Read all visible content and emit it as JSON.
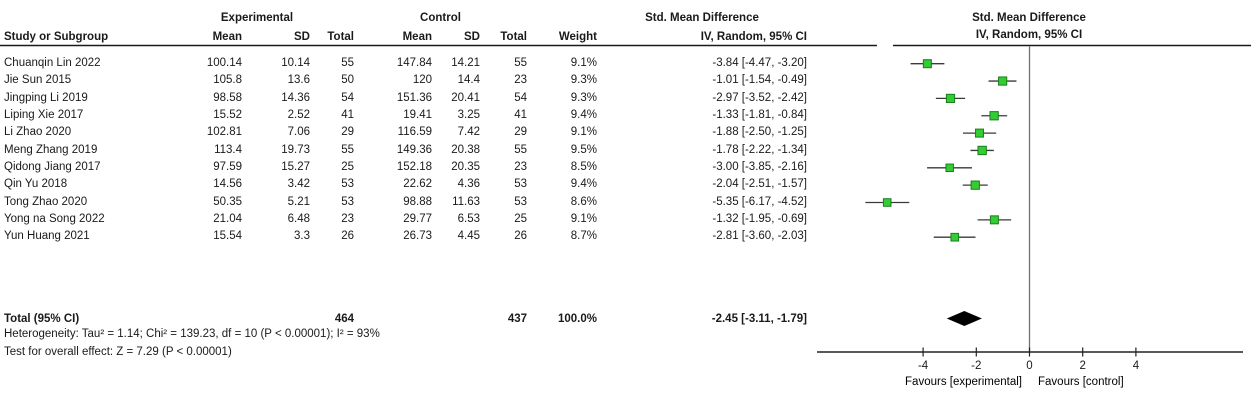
{
  "table": {
    "group_headers": {
      "experimental": "Experimental",
      "control": "Control"
    },
    "smd_header_line1": "Std. Mean Difference",
    "smd_header_line2": "IV, Random, 95% CI",
    "columns": {
      "study": "Study or Subgroup",
      "mean": "Mean",
      "sd": "SD",
      "total": "Total",
      "weight": "Weight"
    },
    "rows": [
      {
        "study": "Chuanqin Lin 2022",
        "exp_mean": "100.14",
        "exp_sd": "10.14",
        "exp_total": "55",
        "ctl_mean": "147.84",
        "ctl_sd": "14.21",
        "ctl_total": "55",
        "weight": "9.1%",
        "ci_text": "-3.84 [-4.47, -3.20]",
        "est": -3.84,
        "lo": -4.47,
        "hi": -3.2,
        "weight_pct": 9.1
      },
      {
        "study": "Jie Sun 2015",
        "exp_mean": "105.8",
        "exp_sd": "13.6",
        "exp_total": "50",
        "ctl_mean": "120",
        "ctl_sd": "14.4",
        "ctl_total": "23",
        "weight": "9.3%",
        "ci_text": "-1.01 [-1.54, -0.49]",
        "est": -1.01,
        "lo": -1.54,
        "hi": -0.49,
        "weight_pct": 9.3
      },
      {
        "study": "Jingping Li 2019",
        "exp_mean": "98.58",
        "exp_sd": "14.36",
        "exp_total": "54",
        "ctl_mean": "151.36",
        "ctl_sd": "20.41",
        "ctl_total": "54",
        "weight": "9.3%",
        "ci_text": "-2.97 [-3.52, -2.42]",
        "est": -2.97,
        "lo": -3.52,
        "hi": -2.42,
        "weight_pct": 9.3
      },
      {
        "study": "Liping Xie 2017",
        "exp_mean": "15.52",
        "exp_sd": "2.52",
        "exp_total": "41",
        "ctl_mean": "19.41",
        "ctl_sd": "3.25",
        "ctl_total": "41",
        "weight": "9.4%",
        "ci_text": "-1.33 [-1.81, -0.84]",
        "est": -1.33,
        "lo": -1.81,
        "hi": -0.84,
        "weight_pct": 9.4
      },
      {
        "study": "Li Zhao 2020",
        "exp_mean": "102.81",
        "exp_sd": "7.06",
        "exp_total": "29",
        "ctl_mean": "116.59",
        "ctl_sd": "7.42",
        "ctl_total": "29",
        "weight": "9.1%",
        "ci_text": "-1.88 [-2.50, -1.25]",
        "est": -1.88,
        "lo": -2.5,
        "hi": -1.25,
        "weight_pct": 9.1
      },
      {
        "study": "Meng Zhang 2019",
        "exp_mean": "113.4",
        "exp_sd": "19.73",
        "exp_total": "55",
        "ctl_mean": "149.36",
        "ctl_sd": "20.38",
        "ctl_total": "55",
        "weight": "9.5%",
        "ci_text": "-1.78 [-2.22, -1.34]",
        "est": -1.78,
        "lo": -2.22,
        "hi": -1.34,
        "weight_pct": 9.5
      },
      {
        "study": "Qidong Jiang 2017",
        "exp_mean": "97.59",
        "exp_sd": "15.27",
        "exp_total": "25",
        "ctl_mean": "152.18",
        "ctl_sd": "20.35",
        "ctl_total": "23",
        "weight": "8.5%",
        "ci_text": "-3.00 [-3.85, -2.16]",
        "est": -3.0,
        "lo": -3.85,
        "hi": -2.16,
        "weight_pct": 8.5
      },
      {
        "study": "Qin Yu 2018",
        "exp_mean": "14.56",
        "exp_sd": "3.42",
        "exp_total": "53",
        "ctl_mean": "22.62",
        "ctl_sd": "4.36",
        "ctl_total": "53",
        "weight": "9.4%",
        "ci_text": "-2.04 [-2.51, -1.57]",
        "est": -2.04,
        "lo": -2.51,
        "hi": -1.57,
        "weight_pct": 9.4
      },
      {
        "study": "Tong Zhao 2020",
        "exp_mean": "50.35",
        "exp_sd": "5.21",
        "exp_total": "53",
        "ctl_mean": "98.88",
        "ctl_sd": "11.63",
        "ctl_total": "53",
        "weight": "8.6%",
        "ci_text": "-5.35 [-6.17, -4.52]",
        "est": -5.35,
        "lo": -6.17,
        "hi": -4.52,
        "weight_pct": 8.6
      },
      {
        "study": "Yong na Song 2022",
        "exp_mean": "21.04",
        "exp_sd": "6.48",
        "exp_total": "23",
        "ctl_mean": "29.77",
        "ctl_sd": "6.53",
        "ctl_total": "25",
        "weight": "9.1%",
        "ci_text": "-1.32 [-1.95, -0.69]",
        "est": -1.32,
        "lo": -1.95,
        "hi": -0.69,
        "weight_pct": 9.1
      },
      {
        "study": "Yun Huang 2021",
        "exp_mean": "15.54",
        "exp_sd": "3.3",
        "exp_total": "26",
        "ctl_mean": "26.73",
        "ctl_sd": "4.45",
        "ctl_total": "26",
        "weight": "8.7%",
        "ci_text": "-2.81 [-3.60, -2.03]",
        "est": -2.81,
        "lo": -3.6,
        "hi": -2.03,
        "weight_pct": 8.7
      }
    ],
    "total": {
      "label": "Total (95% CI)",
      "exp_total": "464",
      "ctl_total": "437",
      "weight": "100.0%",
      "ci_text": "-2.45 [-3.11, -1.79]",
      "est": -2.45,
      "lo": -3.11,
      "hi": -1.79
    },
    "footnotes": {
      "heterogeneity": "Heterogeneity: Tau² = 1.14; Chi² = 139.23, df = 10 (P < 0.00001); I² = 93%",
      "overall_effect": "Test for overall effect: Z = 7.29 (P < 0.00001)"
    }
  },
  "axis": {
    "ticks": [
      -4,
      -2,
      0,
      2,
      4
    ],
    "favours_left": "Favours [experimental]",
    "favours_right": "Favours [control]"
  },
  "colors": {
    "marker_fill": "#33CC33",
    "marker_border": "#1b7e1b",
    "diamond": "#000000",
    "ci_line": "#3a3a3a",
    "axis_line": "#222222",
    "zero_line": "#707070",
    "divider": "#1a1a1a",
    "text": "#1a1a1a"
  },
  "chart_data": {
    "type": "scatter",
    "subtype": "forest-plot",
    "title": "Std. Mean Difference",
    "effect_model": "IV, Random, 95% CI",
    "xlabel": "Favours [experimental] | Favours [control]",
    "xlim": [
      -8,
      8.4
    ],
    "x_ticks": [
      -4,
      -2,
      0,
      2,
      4
    ],
    "studies": [
      "Chuanqin Lin 2022",
      "Jie Sun 2015",
      "Jingping Li 2019",
      "Liping Xie 2017",
      "Li Zhao 2020",
      "Meng Zhang 2019",
      "Qidong Jiang 2017",
      "Qin Yu 2018",
      "Tong Zhao 2020",
      "Yong na Song 2022",
      "Yun Huang 2021"
    ],
    "estimates": [
      -3.84,
      -1.01,
      -2.97,
      -1.33,
      -1.88,
      -1.78,
      -3.0,
      -2.04,
      -5.35,
      -1.32,
      -2.81
    ],
    "ci_low": [
      -4.47,
      -1.54,
      -3.52,
      -1.81,
      -2.5,
      -2.22,
      -3.85,
      -2.51,
      -6.17,
      -1.95,
      -3.6
    ],
    "ci_high": [
      -3.2,
      -0.49,
      -2.42,
      -0.84,
      -1.25,
      -1.34,
      -2.16,
      -1.57,
      -4.52,
      -0.69,
      -2.03
    ],
    "weights_pct": [
      9.1,
      9.3,
      9.3,
      9.4,
      9.1,
      9.5,
      8.5,
      9.4,
      8.6,
      9.1,
      8.7
    ],
    "pooled": {
      "label": "Total (95% CI)",
      "estimate": -2.45,
      "ci_low": -3.11,
      "ci_high": -1.79,
      "weight_pct": 100.0
    },
    "heterogeneity": {
      "tau2": 1.14,
      "chi2": 139.23,
      "df": 10,
      "p": "< 0.00001",
      "i2_pct": 93
    },
    "overall_effect": {
      "z": 7.29,
      "p": "< 0.00001"
    }
  }
}
